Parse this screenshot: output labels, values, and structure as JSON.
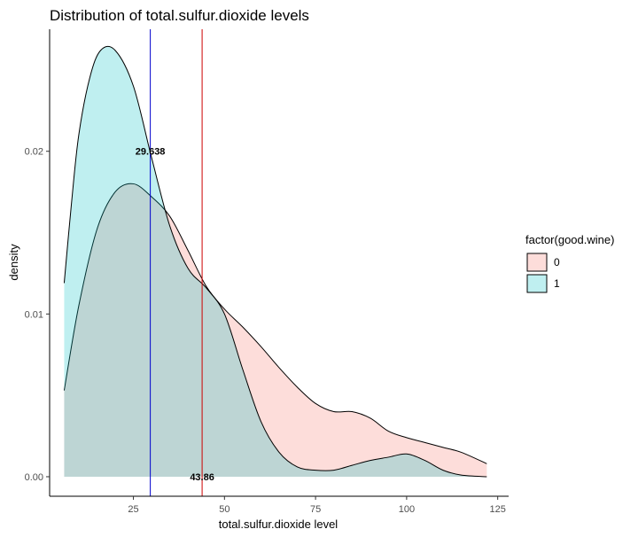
{
  "chart_data": {
    "type": "area",
    "title": "Distribution of total.sulfur.dioxide levels",
    "xlabel": "total.sulfur.dioxide level",
    "ylabel": "density",
    "xlim": [
      2,
      128
    ],
    "ylim": [
      -0.0012,
      0.0275
    ],
    "x_ticks": [
      25,
      50,
      75,
      100,
      125
    ],
    "y_ticks": [
      0.0,
      0.01,
      0.02
    ],
    "x_tick_labels": [
      "25",
      "50",
      "75",
      "100",
      "125"
    ],
    "y_tick_labels": [
      "0.00",
      "0.01",
      "0.02"
    ],
    "grid": false,
    "legend": {
      "title": "factor(good.wine)",
      "position": "right",
      "entries": [
        {
          "label": "0",
          "color": "#F8766D"
        },
        {
          "label": "1",
          "color": "#00BFC4"
        }
      ]
    },
    "series": [
      {
        "name": "0",
        "color": "#F8766D",
        "fill_opacity": 0.25,
        "x": [
          6,
          10,
          15,
          20,
          25,
          30,
          35,
          40,
          45,
          50,
          55,
          60,
          65,
          70,
          75,
          80,
          85,
          90,
          95,
          100,
          105,
          110,
          115,
          122
        ],
        "y": [
          0.0053,
          0.0105,
          0.0152,
          0.0175,
          0.018,
          0.0172,
          0.016,
          0.0139,
          0.0117,
          0.0103,
          0.0092,
          0.008,
          0.0067,
          0.0055,
          0.0045,
          0.004,
          0.004,
          0.0036,
          0.0028,
          0.0024,
          0.0021,
          0.0018,
          0.0015,
          0.0008
        ]
      },
      {
        "name": "1",
        "color": "#00BFC4",
        "fill_opacity": 0.25,
        "x": [
          6,
          8,
          10,
          13,
          16,
          20,
          25,
          30,
          35,
          40,
          45,
          50,
          55,
          60,
          65,
          70,
          75,
          80,
          85,
          90,
          95,
          100,
          105,
          110,
          115,
          122
        ],
        "y": [
          0.0119,
          0.0168,
          0.021,
          0.0245,
          0.0262,
          0.0262,
          0.024,
          0.0196,
          0.0154,
          0.0128,
          0.0116,
          0.01,
          0.0066,
          0.0034,
          0.0015,
          0.0006,
          0.0004,
          0.0004,
          0.0007,
          0.001,
          0.0012,
          0.0014,
          0.001,
          0.0004,
          0.0001,
          0.0
        ]
      }
    ],
    "annotations": [
      {
        "label": "29.638",
        "x": 29.638,
        "y": 0.02,
        "line_color": "#0000CD"
      },
      {
        "label": "43.86",
        "x": 43.86,
        "y": 0.0,
        "line_color": "#CD0000"
      }
    ]
  }
}
